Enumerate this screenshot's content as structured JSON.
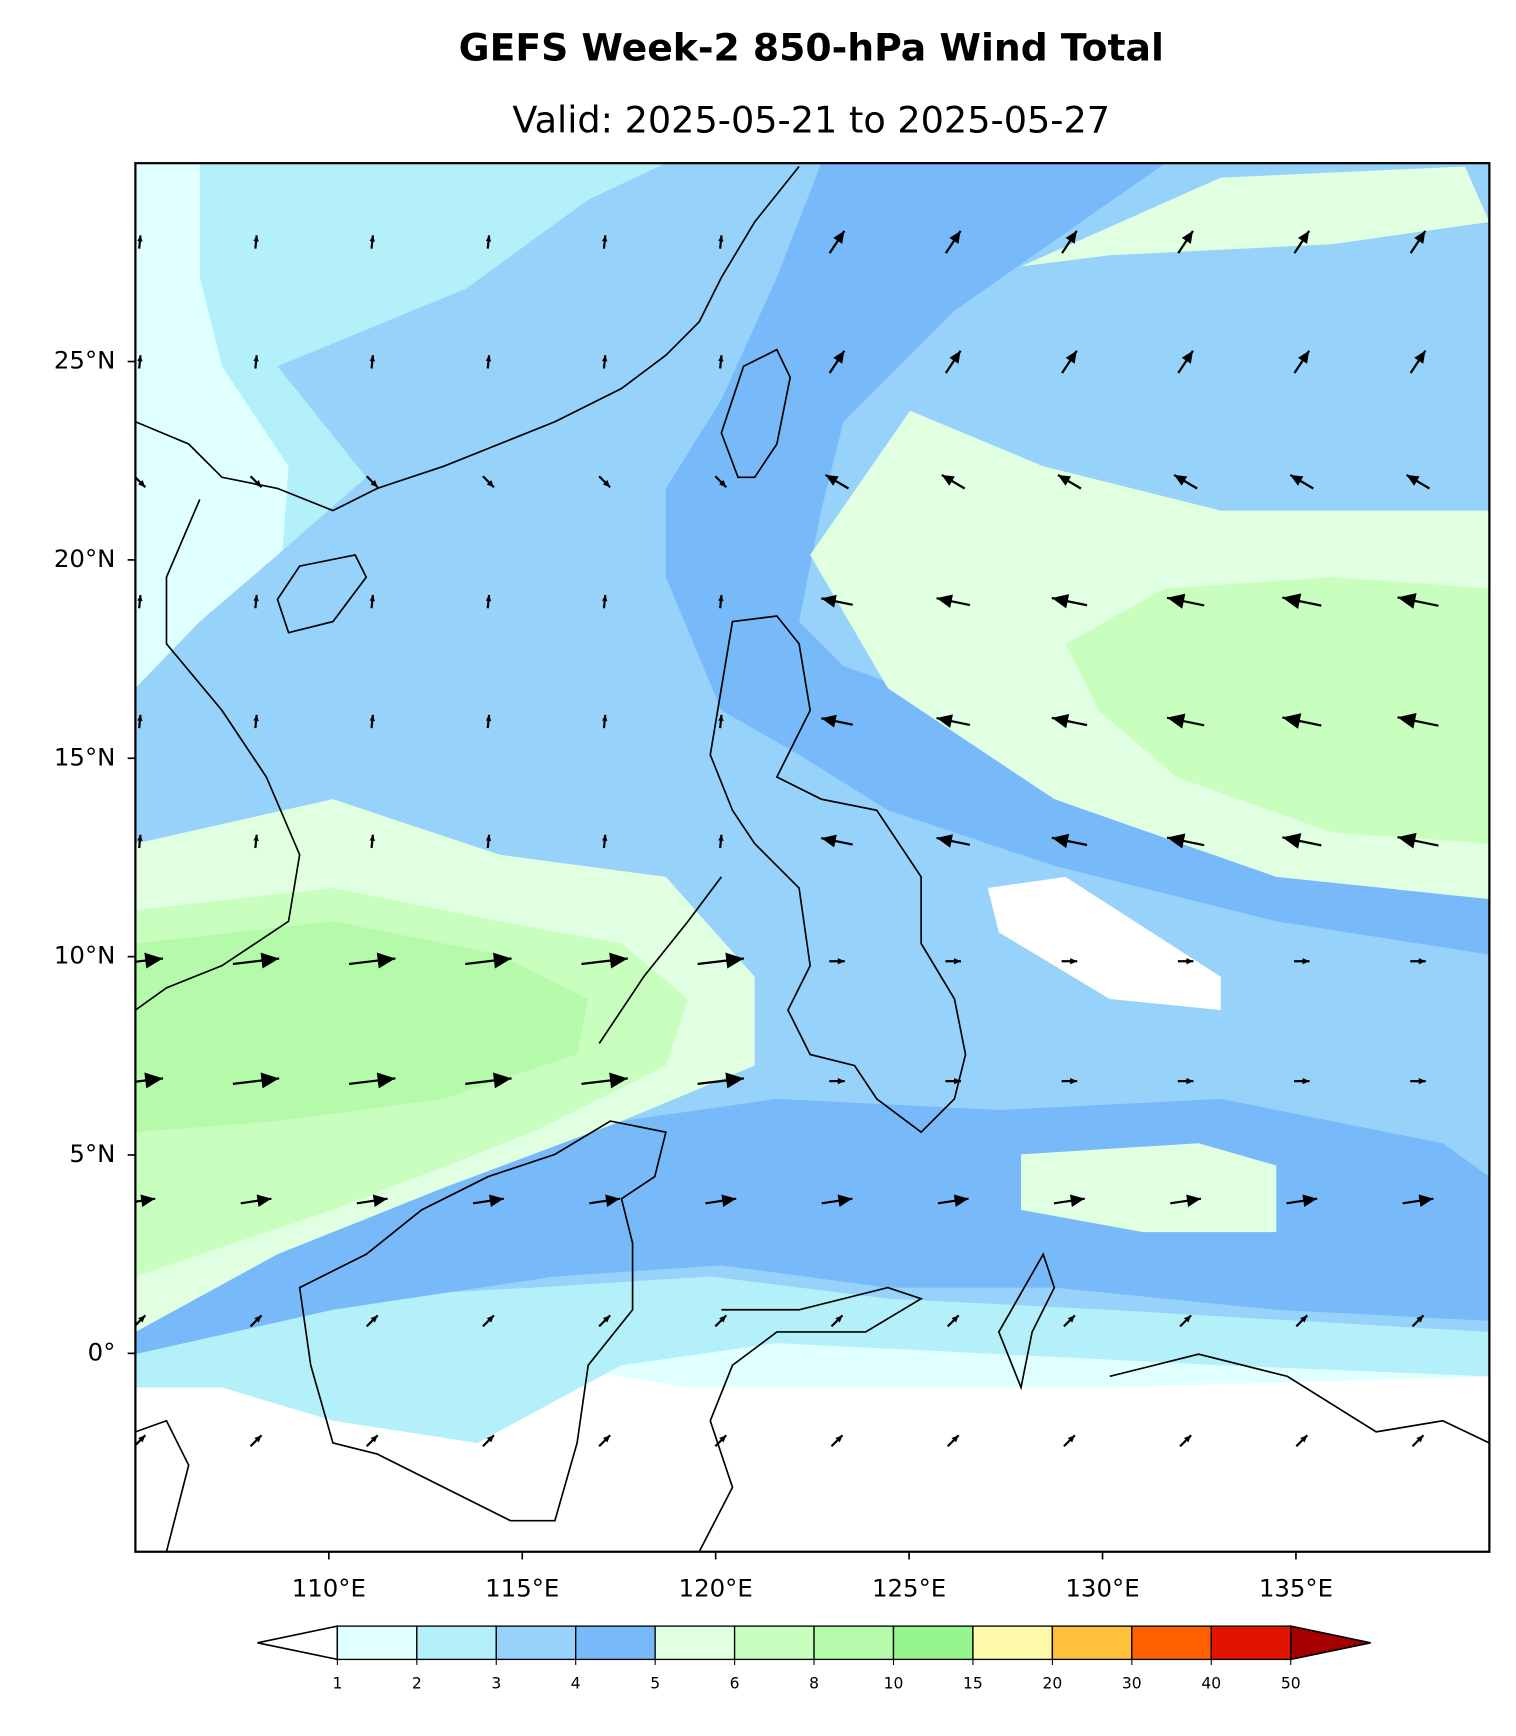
{
  "map": {
    "title": "GEFS Week-2 850-hPa Wind Total",
    "subtitle": "Valid: 2025-05-21 to 2025-05-27",
    "lon_range": [
      105,
      140
    ],
    "lat_range": [
      -5,
      30
    ],
    "lon_ticks": [
      {
        "value": 110,
        "label": "110°E"
      },
      {
        "value": 115,
        "label": "115°E"
      },
      {
        "value": 120,
        "label": "120°E"
      },
      {
        "value": 125,
        "label": "125°E"
      },
      {
        "value": 130,
        "label": "130°E"
      },
      {
        "value": 135,
        "label": "135°E"
      }
    ],
    "lat_ticks": [
      {
        "value": 25,
        "label": "25°N"
      },
      {
        "value": 20,
        "label": "20°N"
      },
      {
        "value": 15,
        "label": "15°N"
      },
      {
        "value": 10,
        "label": "10°N"
      },
      {
        "value": 5,
        "label": "5°N"
      },
      {
        "value": 0,
        "label": "0°"
      }
    ],
    "colorbar": {
      "levels": [
        1,
        2,
        3,
        4,
        5,
        6,
        8,
        10,
        15,
        20,
        30,
        40,
        50
      ],
      "colors": [
        "#e0ffff",
        "#b4f0fa",
        "#96d2fa",
        "#78b9fa",
        "#e1ffe1",
        "#c8ffbe",
        "#b4faaa",
        "#96f58c",
        "#fffaaa",
        "#ffc03c",
        "#ff6000",
        "#e11400"
      ],
      "under_color": "#ffffff",
      "over_color": "#a50000"
    }
  }
}
